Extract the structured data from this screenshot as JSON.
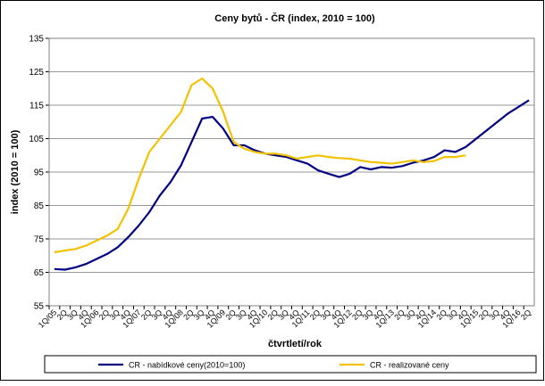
{
  "chart_data": {
    "type": "line",
    "title": "Ceny bytů  - ČR (index, 2010 = 100)",
    "y_label": "index (2010 = 100)",
    "x_label": "čtvrtletí/rok",
    "categories": [
      "1Q/05",
      "2Q",
      "3Q",
      "4Q",
      "1Q/06",
      "2Q",
      "3Q",
      "4Q",
      "1Q/07",
      "2Q",
      "3Q",
      "4Q",
      "1Q/08",
      "2Q",
      "3Q",
      "4Q",
      "1Q/09",
      "2Q",
      "3Q",
      "4Q",
      "1Q/10",
      "2Q",
      "3Q",
      "4Q",
      "1Q/11",
      "2Q",
      "3Q",
      "4Q",
      "1Q/12",
      "2Q",
      "3Q",
      "4Q",
      "1Q/13",
      "2Q",
      "3Q",
      "4Q",
      "1Q/14",
      "2Q",
      "3Q",
      "4Q",
      "1Q/15",
      "2Q",
      "3Q",
      "4Q",
      "1Q/16",
      "2Q"
    ],
    "series": [
      {
        "name": "CR  - nabídkové ceny(2010=100)",
        "color": "#000080",
        "values": [
          66,
          65.8,
          66.5,
          67.5,
          69,
          70.5,
          72.5,
          75.5,
          79,
          83,
          88,
          92,
          97,
          104,
          111,
          111.5,
          108,
          103,
          103,
          101.5,
          100.5,
          100,
          99.5,
          98.5,
          97.5,
          95.5,
          94.5,
          93.5,
          94.5,
          96.5,
          95.8,
          96.5,
          96.3,
          96.8,
          97.8,
          98.5,
          99.5,
          101.5,
          101,
          102.5,
          105,
          107.5,
          110,
          112.5,
          114.5,
          116.5
        ]
      },
      {
        "name": "CR  - realizované ceny",
        "color": "#f2c200",
        "values": [
          71,
          71.5,
          72,
          73,
          74.5,
          76,
          78,
          84,
          93,
          101,
          105,
          109,
          113,
          121,
          123,
          120,
          113,
          104,
          102,
          101,
          100.5,
          100.5,
          100,
          99,
          99.5,
          100,
          99.5,
          99.2,
          99,
          98.5,
          98,
          97.8,
          97.5,
          98,
          98.5,
          98,
          98.3,
          99.5,
          99.5,
          100,
          null,
          null,
          null,
          null,
          null,
          null
        ]
      }
    ],
    "ylim": [
      55,
      135
    ],
    "yticks": [
      55,
      65,
      75,
      85,
      95,
      105,
      115,
      125,
      135
    ],
    "grid": true,
    "legend": "bottom"
  }
}
